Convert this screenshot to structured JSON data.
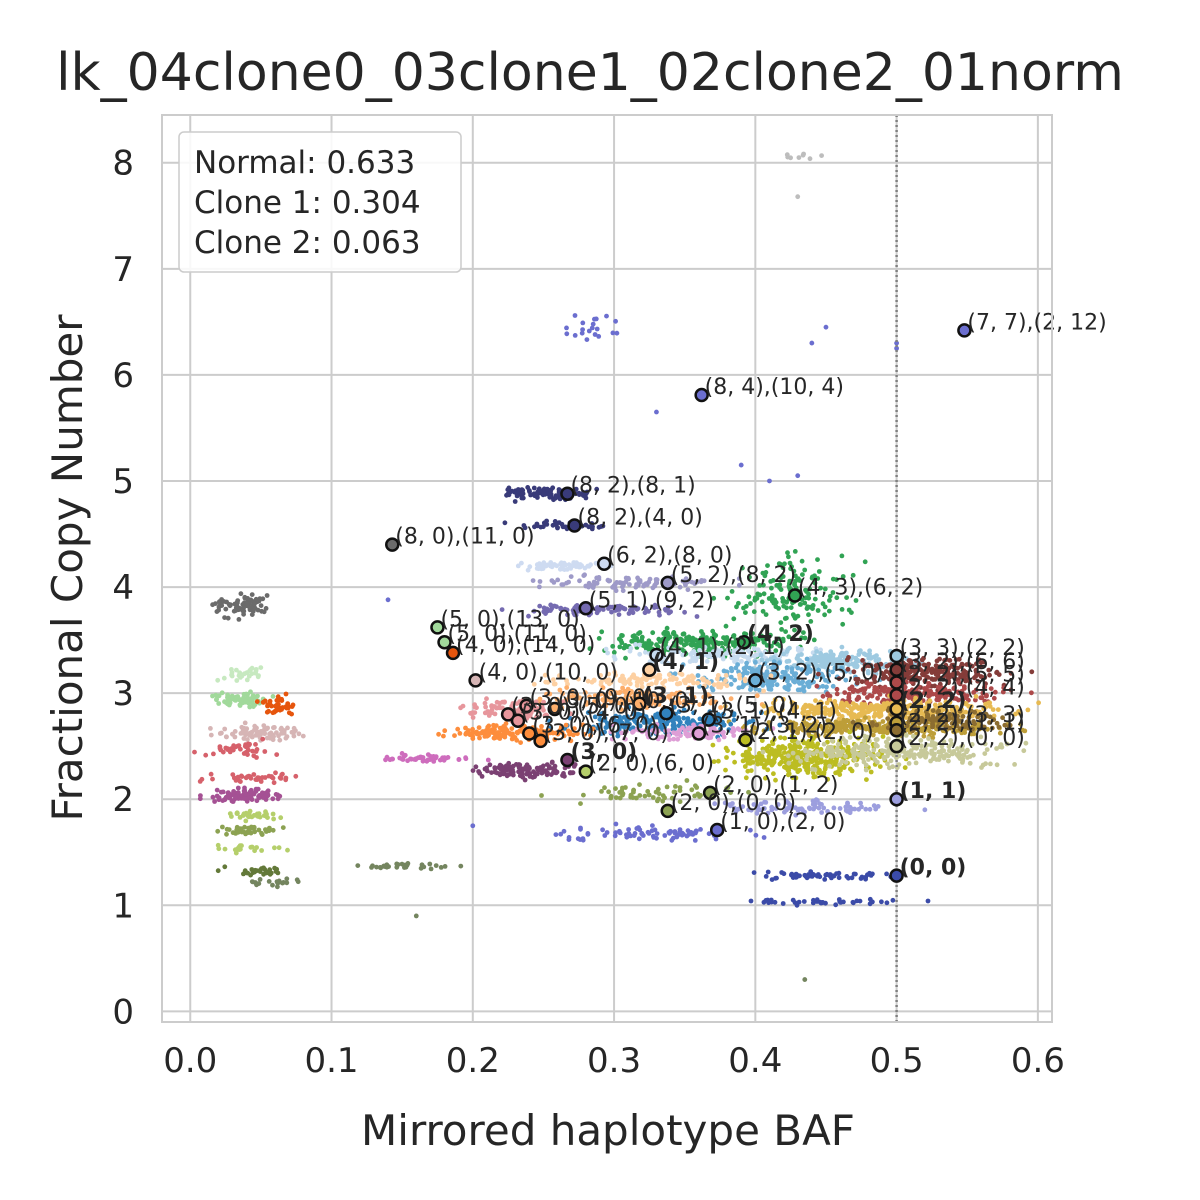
{
  "chart_data": {
    "type": "scatter",
    "title": "lk_04clone0_03clone1_02clone2_01norm",
    "xlabel": "Mirrored haplotype BAF",
    "ylabel": "Fractional Copy Number",
    "xlim": [
      -0.02,
      0.61
    ],
    "ylim": [
      -0.1,
      8.45
    ],
    "xticks": [
      "0.0",
      "0.1",
      "0.2",
      "0.3",
      "0.4",
      "0.5",
      "0.6"
    ],
    "xtick_values": [
      0.0,
      0.1,
      0.2,
      0.3,
      0.4,
      0.5,
      0.6
    ],
    "yticks": [
      "0",
      "1",
      "2",
      "3",
      "4",
      "5",
      "6",
      "7",
      "8"
    ],
    "ytick_values": [
      0,
      1,
      2,
      3,
      4,
      5,
      6,
      7,
      8
    ],
    "grid": true,
    "vline": {
      "x": 0.5,
      "style": "dotted",
      "color": "#808080"
    },
    "legend": {
      "placement": "top-left",
      "entries": [
        "Normal: 0.633",
        "Clone 1: 0.304",
        "Clone 2: 0.063"
      ]
    },
    "clusters": [
      {
        "color": "#6b6b6b",
        "x": [
          0.015,
          0.055
        ],
        "y": [
          3.73,
          3.95
        ],
        "n": 70
      },
      {
        "color": "#c7e9c0",
        "x": [
          0.018,
          0.05
        ],
        "y": [
          3.1,
          3.25
        ],
        "n": 30
      },
      {
        "color": "#a1d99b",
        "x": [
          0.015,
          0.055
        ],
        "y": [
          2.88,
          3.0
        ],
        "n": 70
      },
      {
        "color": "#e6550d",
        "x": [
          0.05,
          0.075
        ],
        "y": [
          2.78,
          2.98
        ],
        "n": 40
      },
      {
        "color": "#d6b5b5",
        "x": [
          0.02,
          0.08
        ],
        "y": [
          2.55,
          2.7
        ],
        "n": 80
      },
      {
        "color": "#d6616b",
        "x": [
          0.01,
          0.06
        ],
        "y": [
          2.4,
          2.55
        ],
        "n": 40
      },
      {
        "color": "#d6616b",
        "x": [
          0.01,
          0.08
        ],
        "y": [
          2.15,
          2.25
        ],
        "n": 40
      },
      {
        "color": "#a55194",
        "x": [
          0.01,
          0.07
        ],
        "y": [
          1.98,
          2.1
        ],
        "n": 90
      },
      {
        "color": "#b5cf6b",
        "x": [
          0.02,
          0.065
        ],
        "y": [
          1.8,
          1.9
        ],
        "n": 30
      },
      {
        "color": "#8ca252",
        "x": [
          0.015,
          0.06
        ],
        "y": [
          1.65,
          1.75
        ],
        "n": 40
      },
      {
        "color": "#b5cf6b",
        "x": [
          0.02,
          0.065
        ],
        "y": [
          1.5,
          1.58
        ],
        "n": 20
      },
      {
        "color": "#637939",
        "x": [
          0.02,
          0.07
        ],
        "y": [
          1.28,
          1.36
        ],
        "n": 30
      },
      {
        "color": "#74855f",
        "x": [
          0.04,
          0.08
        ],
        "y": [
          1.18,
          1.25
        ],
        "n": 20
      },
      {
        "color": "#74855f",
        "x": [
          0.12,
          0.2
        ],
        "y": [
          1.34,
          1.4
        ],
        "n": 30
      },
      {
        "color": "#393b79",
        "x": [
          0.22,
          0.285
        ],
        "y": [
          4.82,
          4.94
        ],
        "n": 90
      },
      {
        "color": "#393b79",
        "x": [
          0.22,
          0.3
        ],
        "y": [
          4.55,
          4.62
        ],
        "n": 40
      },
      {
        "color": "#cedbf1",
        "x": [
          0.23,
          0.3
        ],
        "y": [
          4.15,
          4.25
        ],
        "n": 60
      },
      {
        "color": "#9e9ac8",
        "x": [
          0.25,
          0.38
        ],
        "y": [
          3.98,
          4.1
        ],
        "n": 90
      },
      {
        "color": "#756bb1",
        "x": [
          0.23,
          0.36
        ],
        "y": [
          3.72,
          3.85
        ],
        "n": 90
      },
      {
        "color": "#31a354",
        "x": [
          0.38,
          0.47
        ],
        "y": [
          3.6,
          4.3
        ],
        "n": 150
      },
      {
        "color": "#31a354",
        "x": [
          0.29,
          0.43
        ],
        "y": [
          3.35,
          3.6
        ],
        "n": 250
      },
      {
        "color": "#c6dbef",
        "x": [
          0.3,
          0.45
        ],
        "y": [
          3.28,
          3.45
        ],
        "n": 120
      },
      {
        "color": "#9ecae1",
        "x": [
          0.4,
          0.52
        ],
        "y": [
          3.2,
          3.42
        ],
        "n": 180
      },
      {
        "color": "#6baed6",
        "x": [
          0.35,
          0.47
        ],
        "y": [
          3.0,
          3.3
        ],
        "n": 180
      },
      {
        "color": "#843c39",
        "x": [
          0.46,
          0.58
        ],
        "y": [
          3.05,
          3.35
        ],
        "n": 250
      },
      {
        "color": "#ad494a",
        "x": [
          0.44,
          0.58
        ],
        "y": [
          2.9,
          3.1
        ],
        "n": 200
      },
      {
        "color": "#fdd0a2",
        "x": [
          0.25,
          0.4
        ],
        "y": [
          3.05,
          3.2
        ],
        "n": 120
      },
      {
        "color": "#fdae6b",
        "x": [
          0.25,
          0.38
        ],
        "y": [
          2.85,
          3.05
        ],
        "n": 150
      },
      {
        "color": "#e7ba52",
        "x": [
          0.4,
          0.58
        ],
        "y": [
          2.75,
          2.95
        ],
        "n": 300
      },
      {
        "color": "#bd9e39",
        "x": [
          0.4,
          0.58
        ],
        "y": [
          2.6,
          2.75
        ],
        "n": 300
      },
      {
        "color": "#8c6d31",
        "x": [
          0.48,
          0.58
        ],
        "y": [
          2.65,
          2.85
        ],
        "n": 120
      },
      {
        "color": "#3182bd",
        "x": [
          0.27,
          0.4
        ],
        "y": [
          2.6,
          2.85
        ],
        "n": 200
      },
      {
        "color": "#e7969c",
        "x": [
          0.19,
          0.27
        ],
        "y": [
          2.75,
          2.95
        ],
        "n": 100
      },
      {
        "color": "#fd8d3c",
        "x": [
          0.18,
          0.28
        ],
        "y": [
          2.55,
          2.7
        ],
        "n": 150
      },
      {
        "color": "#de9ed6",
        "x": [
          0.3,
          0.4
        ],
        "y": [
          2.55,
          2.7
        ],
        "n": 100
      },
      {
        "color": "#bcbd22",
        "x": [
          0.38,
          0.5
        ],
        "y": [
          2.2,
          2.6
        ],
        "n": 350
      },
      {
        "color": "#c7c99a",
        "x": [
          0.42,
          0.58
        ],
        "y": [
          2.3,
          2.6
        ],
        "n": 250
      },
      {
        "color": "#ce6dbd",
        "x": [
          0.13,
          0.2
        ],
        "y": [
          2.34,
          2.42
        ],
        "n": 50
      },
      {
        "color": "#7b4173",
        "x": [
          0.2,
          0.28
        ],
        "y": [
          2.2,
          2.35
        ],
        "n": 120
      },
      {
        "color": "#8ca252",
        "x": [
          0.26,
          0.4
        ],
        "y": [
          1.95,
          2.15
        ],
        "n": 60
      },
      {
        "color": "#9c9ede",
        "x": [
          0.37,
          0.5
        ],
        "y": [
          1.85,
          2.0
        ],
        "n": 80
      },
      {
        "color": "#6b6ecf",
        "x": [
          0.25,
          0.4
        ],
        "y": [
          1.6,
          1.75
        ],
        "n": 80
      },
      {
        "color": "#3b4ba8",
        "x": [
          0.4,
          0.5
        ],
        "y": [
          1.24,
          1.32
        ],
        "n": 60
      },
      {
        "color": "#3b4ba8",
        "x": [
          0.39,
          0.52
        ],
        "y": [
          1.0,
          1.06
        ],
        "n": 40
      },
      {
        "color": "#6b6ecf",
        "x": [
          0.26,
          0.31
        ],
        "y": [
          6.3,
          6.6
        ],
        "n": 20
      },
      {
        "color": "#bdbdbd",
        "x": [
          0.4,
          0.46
        ],
        "y": [
          8.0,
          8.1
        ],
        "n": 8
      }
    ],
    "scattered_points": [
      {
        "color": "#6b6ecf",
        "x": 0.5,
        "y": 6.3
      },
      {
        "color": "#6b6ecf",
        "x": 0.5,
        "y": 6.25
      },
      {
        "color": "#6b6ecf",
        "x": 0.45,
        "y": 6.45
      },
      {
        "color": "#6b6ecf",
        "x": 0.44,
        "y": 6.3
      },
      {
        "color": "#6b6ecf",
        "x": 0.33,
        "y": 5.65
      },
      {
        "color": "#6b6ecf",
        "x": 0.39,
        "y": 5.15
      },
      {
        "color": "#6b6ecf",
        "x": 0.43,
        "y": 5.05
      },
      {
        "color": "#6b6ecf",
        "x": 0.41,
        "y": 5.0
      },
      {
        "color": "#6b6ecf",
        "x": 0.14,
        "y": 3.88
      },
      {
        "color": "#6b6ecf",
        "x": 0.2,
        "y": 1.75
      },
      {
        "color": "#bdbdbd",
        "x": 0.43,
        "y": 7.68
      },
      {
        "color": "#74855f",
        "x": 0.16,
        "y": 0.9
      },
      {
        "color": "#74855f",
        "x": 0.435,
        "y": 0.3
      },
      {
        "color": "#9c9ede",
        "x": 0.52,
        "y": 1.9
      }
    ],
    "labeled_points": [
      {
        "label": "(7, 7),(2, 12)",
        "x": 0.548,
        "y": 6.42,
        "color": "#6b6ecf",
        "bold": false
      },
      {
        "label": "(8, 4),(10, 4)",
        "x": 0.362,
        "y": 5.81,
        "color": "#6b6ecf",
        "bold": false
      },
      {
        "label": "(8, 2),(8, 1)",
        "x": 0.267,
        "y": 4.88,
        "color": "#393b79",
        "bold": false
      },
      {
        "label": "(8, 2),(4, 0)",
        "x": 0.272,
        "y": 4.58,
        "color": "#393b79",
        "bold": false
      },
      {
        "label": "(8, 0),(11, 0)",
        "x": 0.143,
        "y": 4.4,
        "color": "#6b6b6b",
        "bold": false
      },
      {
        "label": "(6, 2),(8, 0)",
        "x": 0.293,
        "y": 4.22,
        "color": "#cedbf1",
        "bold": false
      },
      {
        "label": "(5, 2),(8, 2)",
        "x": 0.338,
        "y": 4.04,
        "color": "#9e9ac8",
        "bold": false
      },
      {
        "label": "(4, 3),(6, 2)",
        "x": 0.428,
        "y": 3.92,
        "color": "#31a354",
        "bold": false
      },
      {
        "label": "(5, 1),(9, 2)",
        "x": 0.28,
        "y": 3.8,
        "color": "#756bb1",
        "bold": false
      },
      {
        "label": "(5, 0),(13, 0)",
        "x": 0.175,
        "y": 3.62,
        "color": "#a1d99b",
        "bold": false
      },
      {
        "label": "(5, 0),(11, 0)",
        "x": 0.18,
        "y": 3.48,
        "color": "#a1d99b",
        "bold": false
      },
      {
        "label": "(4, 0),(14, 0)",
        "x": 0.186,
        "y": 3.38,
        "color": "#e6550d",
        "bold": false
      },
      {
        "label": "(4, 2)",
        "x": 0.392,
        "y": 3.48,
        "color": "#31a354",
        "bold": true
      },
      {
        "label": "(3, 3),(2, 2)",
        "x": 0.5,
        "y": 3.35,
        "color": "#9ecae1",
        "bold": false
      },
      {
        "label": "(4, 1),(2, 1)",
        "x": 0.33,
        "y": 3.36,
        "color": "#c6dbef",
        "bold": false
      },
      {
        "label": "(4, 1)",
        "x": 0.325,
        "y": 3.22,
        "color": "#fdd0a2",
        "bold": true
      },
      {
        "label": "(3, 2),(5, 0)",
        "x": 0.4,
        "y": 3.12,
        "color": "#6baed6",
        "bold": false
      },
      {
        "label": "(4, 0),(10, 0)",
        "x": 0.202,
        "y": 3.12,
        "color": "#d6b5b5",
        "bold": false
      },
      {
        "label": "(3, 2),(6, 6)",
        "x": 0.5,
        "y": 3.22,
        "color": "#843c39",
        "bold": false
      },
      {
        "label": "(2, 2),(5, 5)",
        "x": 0.5,
        "y": 3.1,
        "color": "#ad494a",
        "bold": false
      },
      {
        "label": "(2, 2),(4, 4)",
        "x": 0.5,
        "y": 2.98,
        "color": "#ad494a",
        "bold": false
      },
      {
        "label": "(3, 0),(9, 0)",
        "x": 0.238,
        "y": 2.88,
        "color": "#e7969c",
        "bold": false
      },
      {
        "label": "(3, 0),(10, 0)",
        "x": 0.258,
        "y": 2.85,
        "color": "#fdae6b",
        "bold": false
      },
      {
        "label": "(3, 1)",
        "x": 0.318,
        "y": 2.9,
        "color": "#fdae6b",
        "bold": true
      },
      {
        "label": "(3, 1),(5, 0)",
        "x": 0.337,
        "y": 2.81,
        "color": "#3182bd",
        "bold": false
      },
      {
        "label": "(2, 2)",
        "x": 0.5,
        "y": 2.85,
        "color": "#e7ba52",
        "bold": true
      },
      {
        "label": "(2, 2),(3, 3)",
        "x": 0.5,
        "y": 2.72,
        "color": "#bd9e39",
        "bold": false
      },
      {
        "label": "(2, 2),(1, 1)",
        "x": 0.5,
        "y": 2.65,
        "color": "#8c6d31",
        "bold": false
      },
      {
        "label": "(3, 0),(5, 0)",
        "x": 0.225,
        "y": 2.8,
        "color": "#e7969c",
        "bold": false
      },
      {
        "label": "(3, 0),(4, 0)",
        "x": 0.232,
        "y": 2.74,
        "color": "#e7969c",
        "bold": false
      },
      {
        "label": "(3, 0),(6, 0)",
        "x": 0.24,
        "y": 2.62,
        "color": "#fd8d3c",
        "bold": false
      },
      {
        "label": "(3, 0),(7, 0)",
        "x": 0.248,
        "y": 2.55,
        "color": "#fd8d3c",
        "bold": false
      },
      {
        "label": "(3, 1),(4, 1)",
        "x": 0.367,
        "y": 2.75,
        "color": "#3182bd",
        "bold": false
      },
      {
        "label": "(3, 1),(3, 2)",
        "x": 0.36,
        "y": 2.62,
        "color": "#de9ed6",
        "bold": false
      },
      {
        "label": "(2, 1),(2, 0)",
        "x": 0.393,
        "y": 2.56,
        "color": "#bcbd22",
        "bold": false
      },
      {
        "label": "(2, 2),(0, 0)",
        "x": 0.5,
        "y": 2.5,
        "color": "#c7c99a",
        "bold": false
      },
      {
        "label": "(3, 0)",
        "x": 0.267,
        "y": 2.37,
        "color": "#7b4173",
        "bold": true
      },
      {
        "label": "(2, 0),(6, 0)",
        "x": 0.28,
        "y": 2.26,
        "color": "#b5cf6b",
        "bold": false
      },
      {
        "label": "(2, 0),(1, 2)",
        "x": 0.368,
        "y": 2.06,
        "color": "#8ca252",
        "bold": false
      },
      {
        "label": "(2, 0),(0, 0)",
        "x": 0.338,
        "y": 1.89,
        "color": "#8ca252",
        "bold": false
      },
      {
        "label": "(1, 1)",
        "x": 0.5,
        "y": 2.0,
        "color": "#9c9ede",
        "bold": true
      },
      {
        "label": "(1, 0),(2, 0)",
        "x": 0.373,
        "y": 1.71,
        "color": "#6b6ecf",
        "bold": false
      },
      {
        "label": "(0, 0)",
        "x": 0.5,
        "y": 1.28,
        "color": "#3b4ba8",
        "bold": true
      }
    ]
  }
}
